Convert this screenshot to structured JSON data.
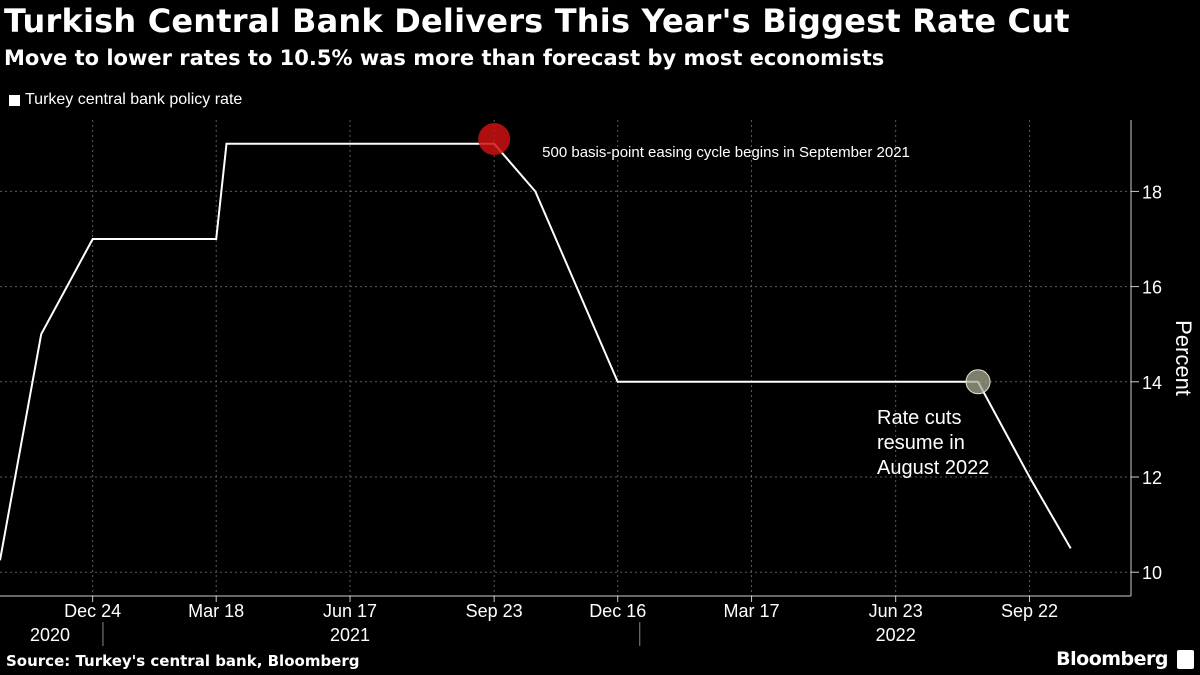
{
  "header": {
    "title": "Turkish Central Bank Delivers This Year's Biggest Rate Cut",
    "subtitle": "Move to lower rates to 10.5% was more than forecast by most economists"
  },
  "footer": {
    "source": "Source: Turkey's central bank, Bloomberg",
    "brand": "Bloomberg"
  },
  "chart_data": {
    "type": "line",
    "title": "Turkish Central Bank Delivers This Year's Biggest Rate Cut",
    "subtitle": "Move to lower rates to 10.5% was more than forecast by most economists",
    "xlabel": "",
    "ylabel": "Percent",
    "ylim": [
      9.5,
      19.5
    ],
    "y_ticks": [
      10,
      12,
      14,
      16,
      18
    ],
    "grid": true,
    "legend": "top-left",
    "x_start": "2020-10-22",
    "x_end": "2022-11-30",
    "x_ticks": [
      {
        "date": "2020-12-24",
        "label": "Dec 24"
      },
      {
        "date": "2021-03-18",
        "label": "Mar 18"
      },
      {
        "date": "2021-06-17",
        "label": "Jun 17"
      },
      {
        "date": "2021-09-23",
        "label": "Sep 23"
      },
      {
        "date": "2021-12-16",
        "label": "Dec 16"
      },
      {
        "date": "2022-03-17",
        "label": "Mar 17"
      },
      {
        "date": "2022-06-23",
        "label": "Jun 23"
      },
      {
        "date": "2022-09-22",
        "label": "Sep 22"
      }
    ],
    "year_labels": [
      {
        "date": "2020-11-25",
        "label": "2020"
      },
      {
        "date": "2021-06-17",
        "label": "2021"
      },
      {
        "date": "2022-06-23",
        "label": "2022"
      }
    ],
    "year_separators": [
      "2020-12-31",
      "2021-12-31"
    ],
    "series": [
      {
        "name": "Turkey central bank policy rate",
        "color": "#ffffff",
        "points": [
          {
            "date": "2020-10-22",
            "value": 10.25
          },
          {
            "date": "2020-11-19",
            "value": 15
          },
          {
            "date": "2020-12-24",
            "value": 17
          },
          {
            "date": "2021-03-18",
            "value": 17
          },
          {
            "date": "2021-03-25",
            "value": 19
          },
          {
            "date": "2021-09-23",
            "value": 19
          },
          {
            "date": "2021-10-21",
            "value": 18
          },
          {
            "date": "2021-11-18",
            "value": 16
          },
          {
            "date": "2021-12-16",
            "value": 14
          },
          {
            "date": "2022-08-18",
            "value": 14
          },
          {
            "date": "2022-09-22",
            "value": 12
          },
          {
            "date": "2022-10-20",
            "value": 10.5
          }
        ]
      }
    ],
    "annotations": [
      {
        "date": "2021-09-23",
        "value": 19.1,
        "marker_color": "#cc1111",
        "label_lines": [
          "500 basis-point easing cycle begins in September 2021"
        ]
      },
      {
        "date": "2022-08-18",
        "value": 14,
        "marker_color": "#a8a890",
        "label_lines": [
          "Rate cuts",
          "resume in",
          "August 2022"
        ]
      }
    ]
  }
}
